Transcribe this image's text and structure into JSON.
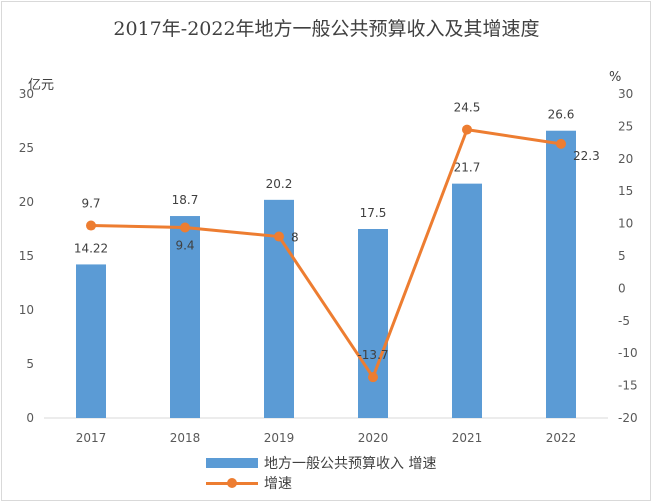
{
  "chart_data": {
    "type": "bar+line",
    "title": "2017年-2022年地方一般公共预算收入及其增速度",
    "categories": [
      "2017",
      "2018",
      "2019",
      "2020",
      "2021",
      "2022"
    ],
    "y_left": {
      "unit": "亿元",
      "ylim": [
        0,
        30
      ],
      "ticks": [
        "0",
        "5",
        "10",
        "15",
        "20",
        "25",
        "30"
      ]
    },
    "y_right": {
      "unit": "%",
      "ylim": [
        -20,
        30
      ],
      "ticks": [
        "-20",
        "-15",
        "-10",
        "-5",
        "0",
        "5",
        "10",
        "15",
        "20",
        "25",
        "30"
      ]
    },
    "series": [
      {
        "name": "地方一般公共预算收入 增速",
        "type": "bar",
        "axis": "left",
        "color": "#5b9bd5",
        "values": [
          14.22,
          18.7,
          20.2,
          17.5,
          21.7,
          26.6
        ],
        "labels": [
          "14.22",
          "18.7",
          "20.2",
          "17.5",
          "21.7",
          "26.6"
        ]
      },
      {
        "name": "增速",
        "type": "line",
        "axis": "right",
        "color": "#ed7d31",
        "values": [
          9.7,
          9.4,
          8,
          -13.7,
          24.5,
          22.3
        ],
        "labels": [
          "9.7",
          "9.4",
          "8",
          "-13.7",
          "24.5",
          "22.3"
        ]
      }
    ],
    "grid": false,
    "legend": "bottom"
  }
}
